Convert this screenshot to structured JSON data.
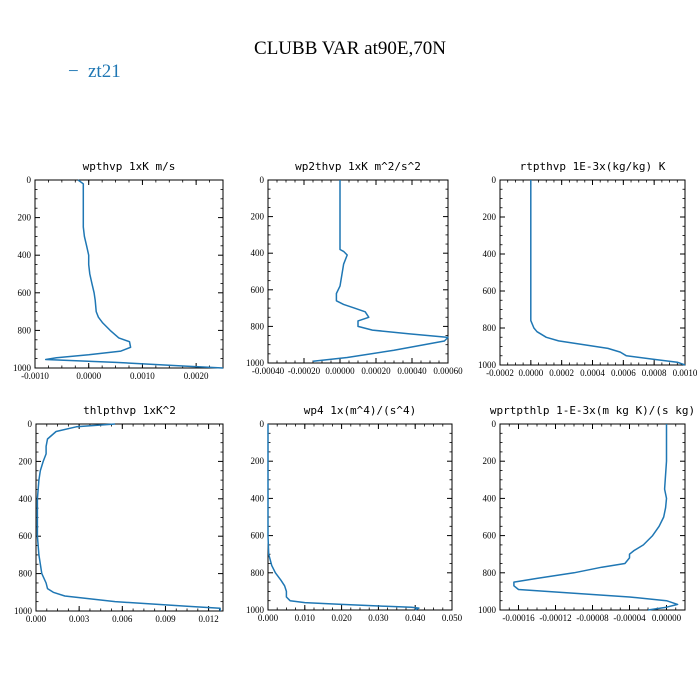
{
  "figure": {
    "title": "CLUBB VAR at90E,70N",
    "legend": {
      "label": "zt21",
      "symbol": "−",
      "color": "#1f77b4"
    }
  },
  "chart_data": [
    {
      "type": "line",
      "title": "wpthvp  1xK m/s",
      "xlim": [
        -0.001,
        0.0025
      ],
      "ylim": [
        1000,
        0
      ],
      "xticks": [
        "-0.0010",
        "0.0000",
        "0.0010",
        "0.0020"
      ],
      "xtick_values": [
        -0.001,
        0.0,
        0.001,
        0.002
      ],
      "yticks": [
        "0",
        "200",
        "400",
        "600",
        "800",
        "1000"
      ],
      "series": [
        {
          "name": "zt21",
          "color": "#1f77b4",
          "x": [
            -0.0002,
            -0.0001,
            -0.0001,
            -0.0001,
            -0.0001,
            -0.0001,
            -0.0001,
            -8e-05,
            -4e-05,
            0.0,
            0.0,
            2e-05,
            6e-05,
            0.0001,
            0.00012,
            0.00014,
            0.00018,
            0.00026,
            0.0004,
            0.00056,
            0.00076,
            0.00078,
            0.0006,
            0.0,
            -0.0006,
            -0.0008,
            0.0005,
            0.0018,
            0.0025
          ],
          "y": [
            0,
            20,
            50,
            100,
            150,
            200,
            250,
            300,
            350,
            400,
            450,
            500,
            550,
            600,
            640,
            700,
            730,
            760,
            800,
            840,
            860,
            890,
            910,
            930,
            945,
            955,
            970,
            990,
            1000
          ]
        }
      ]
    },
    {
      "type": "line",
      "title": "wp2thvp  1xK m^2/s^2",
      "xlim": [
        -0.0004,
        0.0006
      ],
      "ylim": [
        1000,
        0
      ],
      "xticks": [
        "-0.00040",
        "-0.00020",
        "0.00000",
        "0.00020",
        "0.00040",
        "0.00060"
      ],
      "xtick_values": [
        -0.0004,
        -0.0002,
        0.0,
        0.0002,
        0.0004,
        0.0006
      ],
      "yticks": [
        "0",
        "200",
        "400",
        "600",
        "800",
        "1000"
      ],
      "series": [
        {
          "name": "zt21",
          "color": "#1f77b4",
          "x": [
            0.0,
            0.0,
            0.0,
            0.0,
            0.0,
            0.0,
            2e-05,
            4e-05,
            2e-05,
            1e-05,
            0.0,
            -2e-05,
            -2e-05,
            2e-05,
            8e-05,
            0.00014,
            0.00016,
            0.0001,
            0.0001,
            0.00018,
            0.00038,
            0.0006,
            0.00058,
            0.0003,
            4e-05,
            -0.00015
          ],
          "y": [
            0,
            100,
            200,
            300,
            360,
            380,
            390,
            410,
            460,
            520,
            580,
            620,
            660,
            680,
            700,
            720,
            750,
            770,
            800,
            820,
            840,
            860,
            880,
            930,
            970,
            990
          ]
        }
      ]
    },
    {
      "type": "line",
      "title": "rtpthvp  1E-3x(kg/kg) K",
      "xlim": [
        -0.0002,
        0.001
      ],
      "ylim": [
        1000,
        0
      ],
      "xticks": [
        "-0.0002",
        "0.0000",
        "0.0002",
        "0.0004",
        "0.0006",
        "0.0008",
        "0.0010"
      ],
      "xtick_values": [
        -0.0002,
        0.0,
        0.0002,
        0.0004,
        0.0006,
        0.0008,
        0.001
      ],
      "yticks": [
        "0",
        "200",
        "400",
        "600",
        "800",
        "1000"
      ],
      "series": [
        {
          "name": "zt21",
          "color": "#1f77b4",
          "x": [
            0.0,
            0.0,
            0.0,
            0.0,
            0.0,
            0.0,
            0.0,
            0.0,
            2e-05,
            4e-05,
            0.0001,
            0.00018,
            0.00034,
            0.0005,
            0.00058,
            0.00062,
            0.0008,
            0.00095,
            0.001
          ],
          "y": [
            0,
            200,
            400,
            600,
            650,
            700,
            740,
            760,
            800,
            820,
            850,
            870,
            890,
            910,
            930,
            950,
            970,
            985,
            1000
          ]
        }
      ]
    },
    {
      "type": "line",
      "title": "thlpthvp  1xK^2",
      "xlim": [
        0,
        0.013
      ],
      "ylim": [
        1000,
        0
      ],
      "xticks": [
        "0.000",
        "0.003",
        "0.006",
        "0.009",
        "0.012"
      ],
      "xtick_values": [
        0.0,
        0.003,
        0.006,
        0.009,
        0.012
      ],
      "yticks": [
        "0",
        "200",
        "400",
        "600",
        "800",
        "1000"
      ],
      "series": [
        {
          "name": "zt21",
          "color": "#1f77b4",
          "x": [
            0.0055,
            0.0028,
            0.0014,
            0.0008,
            0.0007,
            0.0007,
            0.0005,
            0.0003,
            0.0002,
            0.0001,
            0.0001,
            0.0001,
            0.0002,
            0.0004,
            0.0007,
            0.0008,
            0.0012,
            0.002,
            0.0055,
            0.0105,
            0.0128,
            0.0128
          ],
          "y": [
            0,
            15,
            40,
            80,
            120,
            160,
            200,
            250,
            300,
            400,
            500,
            600,
            700,
            800,
            850,
            880,
            900,
            920,
            950,
            975,
            985,
            1000
          ]
        }
      ]
    },
    {
      "type": "line",
      "title": "wp4  1x(m^4)/(s^4)",
      "xlim": [
        0,
        0.05
      ],
      "ylim": [
        1000,
        0
      ],
      "xticks": [
        "0.000",
        "0.010",
        "0.020",
        "0.030",
        "0.040",
        "0.050"
      ],
      "xtick_values": [
        0.0,
        0.01,
        0.02,
        0.03,
        0.04,
        0.05
      ],
      "yticks": [
        "0",
        "200",
        "400",
        "600",
        "800",
        "1000"
      ],
      "series": [
        {
          "name": "zt21",
          "color": "#1f77b4",
          "x": [
            0.0,
            0.0,
            0.0,
            0.0,
            0.0002,
            0.001,
            0.002,
            0.0035,
            0.0045,
            0.005,
            0.005,
            0.006,
            0.01,
            0.02,
            0.032,
            0.039,
            0.041,
            0.04
          ],
          "y": [
            0,
            200,
            400,
            600,
            700,
            760,
            800,
            840,
            870,
            900,
            930,
            950,
            960,
            970,
            980,
            985,
            990,
            1000
          ]
        }
      ]
    },
    {
      "type": "line",
      "title": "wprtpthlp  1-E-3x(m kg K)/(s kg)",
      "xlim": [
        -0.00018,
        2e-05
      ],
      "ylim": [
        1000,
        0
      ],
      "xticks": [
        "-0.00016",
        "-0.00012",
        "-0.00008",
        "-0.00004",
        "0.00000"
      ],
      "xtick_values": [
        -0.00016,
        -0.00012,
        -8e-05,
        -4e-05,
        0.0
      ],
      "yticks": [
        "0",
        "200",
        "400",
        "600",
        "800",
        "1000"
      ],
      "series": [
        {
          "name": "zt21",
          "color": "#1f77b4",
          "x": [
            0.0,
            0.0,
            0.0,
            -2e-06,
            0.0,
            -1e-06,
            -3e-06,
            -8e-06,
            -1.5e-05,
            -2.5e-05,
            -3.5e-05,
            -4e-05,
            -4e-05,
            -4.5e-05,
            -7e-05,
            -0.0001,
            -0.00014,
            -0.000165,
            -0.000165,
            -0.00016,
            -0.0001,
            -4e-05,
            0.0,
            1.2e-05,
            0.0,
            -2e-05
          ],
          "y": [
            0,
            100,
            200,
            350,
            400,
            450,
            500,
            550,
            600,
            650,
            680,
            700,
            720,
            750,
            770,
            800,
            830,
            850,
            870,
            890,
            910,
            930,
            950,
            970,
            985,
            1000
          ]
        }
      ]
    }
  ]
}
